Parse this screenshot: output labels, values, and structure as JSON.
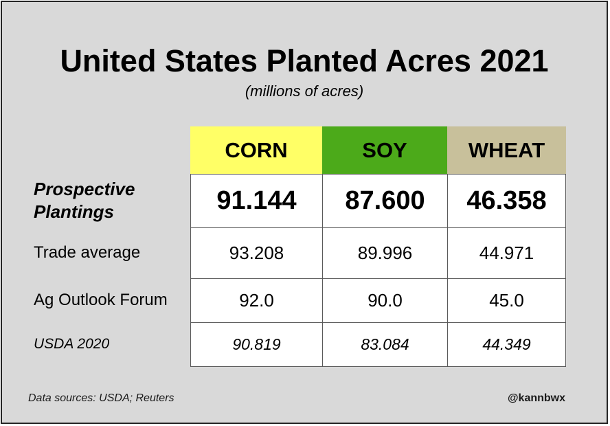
{
  "chart_data": {
    "type": "table",
    "title": "United States Planted Acres 2021",
    "subtitle": "(millions of acres)",
    "columns": [
      {
        "name": "CORN",
        "color": "#ffff66"
      },
      {
        "name": "SOY",
        "color": "#4caa1a"
      },
      {
        "name": "WHEAT",
        "color": "#c8c09b"
      }
    ],
    "rows": [
      {
        "label": "Prospective Plantings",
        "values": [
          "91.144",
          "87.600",
          "46.358"
        ]
      },
      {
        "label": "Trade average",
        "values": [
          "93.208",
          "89.996",
          "44.971"
        ]
      },
      {
        "label": "Ag Outlook Forum",
        "values": [
          "92.0",
          "90.0",
          "45.0"
        ]
      },
      {
        "label": "USDA 2020",
        "values": [
          "90.819",
          "83.084",
          "44.349"
        ]
      }
    ]
  },
  "footer": {
    "source": "Data sources: USDA; Reuters",
    "handle": "@kannbwx"
  }
}
